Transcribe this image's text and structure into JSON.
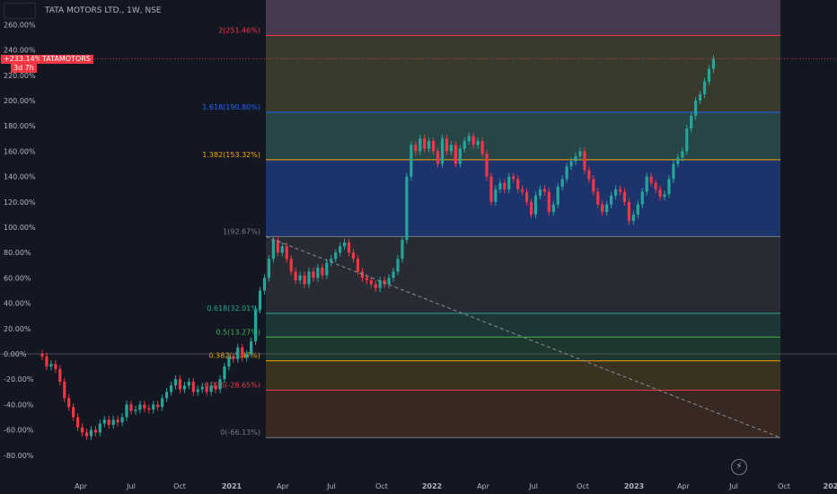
{
  "header": {
    "title": "TATA MOTORS LTD., 1W, NSE"
  },
  "price_label": {
    "value": "+233.14%",
    "countdown": "3d 7h",
    "symbol": "TATAMOTORS"
  },
  "colors": {
    "background": "#131722",
    "up": "#26a69a",
    "down": "#f23645",
    "axis_text": "#b2b5be"
  },
  "icons": [
    "symbol-search-box",
    "lightning-icon"
  ],
  "chart_data": {
    "type": "candlestick",
    "title": "TATA MOTORS LTD., 1W, NSE",
    "ylabel": "",
    "y_unit": "%",
    "yticks": [
      "260.00%",
      "240.00%",
      "220.00%",
      "200.00%",
      "180.00%",
      "160.00%",
      "140.00%",
      "120.00%",
      "100.00%",
      "80.00%",
      "60.00%",
      "40.00%",
      "20.00%",
      "0.00%",
      "-20.00%",
      "-40.00%",
      "-60.00%",
      "-80.00%"
    ],
    "ylim": [
      -84,
      274
    ],
    "xticks": [
      "Apr",
      "Jul",
      "Oct",
      "2021",
      "Apr",
      "Jul",
      "Oct",
      "2022",
      "Apr",
      "Jul",
      "Oct",
      "2023",
      "Apr",
      "Jul",
      "Oct",
      "202"
    ],
    "x_start": "2020-01-06",
    "candles": [
      [
        0,
        -2
      ],
      [
        -2,
        -10
      ],
      [
        -10,
        -8
      ],
      [
        -8,
        -12
      ],
      [
        -12,
        -22
      ],
      [
        -22,
        -35
      ],
      [
        -35,
        -42
      ],
      [
        -42,
        -50
      ],
      [
        -50,
        -58
      ],
      [
        -58,
        -62
      ],
      [
        -62,
        -65
      ],
      [
        -65,
        -60
      ],
      [
        -60,
        -62
      ],
      [
        -62,
        -55
      ],
      [
        -55,
        -52
      ],
      [
        -52,
        -56
      ],
      [
        -56,
        -52
      ],
      [
        -52,
        -54
      ],
      [
        -54,
        -50
      ],
      [
        -50,
        -40
      ],
      [
        -40,
        -45
      ],
      [
        -45,
        -44
      ],
      [
        -44,
        -40
      ],
      [
        -40,
        -43
      ],
      [
        -43,
        -44
      ],
      [
        -44,
        -40
      ],
      [
        -40,
        -42
      ],
      [
        -42,
        -35
      ],
      [
        -35,
        -30
      ],
      [
        -30,
        -25
      ],
      [
        -25,
        -20
      ],
      [
        -20,
        -28
      ],
      [
        -28,
        -25
      ],
      [
        -25,
        -22
      ],
      [
        -22,
        -30
      ],
      [
        -30,
        -28
      ],
      [
        -28,
        -26
      ],
      [
        -26,
        -30
      ],
      [
        -30,
        -25
      ],
      [
        -25,
        -28
      ],
      [
        -28,
        -20
      ],
      [
        -20,
        -10
      ],
      [
        -10,
        -2
      ],
      [
        -2,
        -4
      ],
      [
        -4,
        5
      ],
      [
        5,
        -3
      ],
      [
        -3,
        0
      ],
      [
        0,
        10
      ],
      [
        10,
        35
      ],
      [
        35,
        50
      ],
      [
        50,
        60
      ],
      [
        60,
        75
      ],
      [
        75,
        90
      ],
      [
        90,
        80
      ],
      [
        80,
        85
      ],
      [
        85,
        75
      ],
      [
        75,
        65
      ],
      [
        65,
        58
      ],
      [
        58,
        62
      ],
      [
        62,
        55
      ],
      [
        55,
        65
      ],
      [
        65,
        60
      ],
      [
        60,
        68
      ],
      [
        68,
        62
      ],
      [
        62,
        72
      ],
      [
        72,
        75
      ],
      [
        75,
        80
      ],
      [
        80,
        85
      ],
      [
        85,
        88
      ],
      [
        88,
        80
      ],
      [
        80,
        75
      ],
      [
        75,
        65
      ],
      [
        65,
        60
      ],
      [
        60,
        58
      ],
      [
        58,
        55
      ],
      [
        55,
        52
      ],
      [
        52,
        58
      ],
      [
        58,
        55
      ],
      [
        55,
        60
      ],
      [
        60,
        65
      ],
      [
        65,
        75
      ],
      [
        75,
        90
      ],
      [
        90,
        140
      ],
      [
        140,
        165
      ],
      [
        165,
        160
      ],
      [
        160,
        170
      ],
      [
        170,
        162
      ],
      [
        162,
        168
      ],
      [
        168,
        160
      ],
      [
        160,
        150
      ],
      [
        150,
        170
      ],
      [
        170,
        160
      ],
      [
        160,
        165
      ],
      [
        165,
        150
      ],
      [
        150,
        162
      ],
      [
        162,
        168
      ],
      [
        168,
        172
      ],
      [
        172,
        165
      ],
      [
        165,
        168
      ],
      [
        168,
        158
      ],
      [
        158,
        140
      ],
      [
        140,
        120
      ],
      [
        120,
        130
      ],
      [
        130,
        135
      ],
      [
        135,
        130
      ],
      [
        130,
        140
      ],
      [
        140,
        138
      ],
      [
        138,
        130
      ],
      [
        130,
        128
      ],
      [
        128,
        120
      ],
      [
        120,
        110
      ],
      [
        110,
        125
      ],
      [
        125,
        130
      ],
      [
        130,
        128
      ],
      [
        128,
        112
      ],
      [
        112,
        118
      ],
      [
        118,
        132
      ],
      [
        132,
        138
      ],
      [
        138,
        148
      ],
      [
        148,
        152
      ],
      [
        152,
        156
      ],
      [
        156,
        160
      ],
      [
        160,
        145
      ],
      [
        145,
        138
      ],
      [
        138,
        128
      ],
      [
        128,
        118
      ],
      [
        118,
        112
      ],
      [
        112,
        118
      ],
      [
        118,
        125
      ],
      [
        125,
        130
      ],
      [
        130,
        128
      ],
      [
        128,
        120
      ],
      [
        120,
        105
      ],
      [
        105,
        110
      ],
      [
        110,
        118
      ],
      [
        118,
        128
      ],
      [
        128,
        140
      ],
      [
        140,
        135
      ],
      [
        135,
        130
      ],
      [
        130,
        124
      ],
      [
        124,
        126
      ],
      [
        126,
        138
      ],
      [
        138,
        150
      ],
      [
        150,
        155
      ],
      [
        155,
        160
      ],
      [
        160,
        178
      ],
      [
        178,
        188
      ],
      [
        188,
        200
      ],
      [
        200,
        205
      ],
      [
        205,
        215
      ],
      [
        215,
        225
      ],
      [
        225,
        233
      ]
    ],
    "fibonacci": [
      {
        "level": "2",
        "value": 251.46,
        "label": "2(251.46%)",
        "color": "#f23645"
      },
      {
        "level": "1.618",
        "value": 190.8,
        "label": "1.618(190.80%)",
        "color": "#2962ff"
      },
      {
        "level": "1.382",
        "value": 153.32,
        "label": "1.382(153.32%)",
        "color": "#f7a600"
      },
      {
        "level": "1",
        "value": 92.67,
        "label": "1(92.67%)",
        "color": "#787b86"
      },
      {
        "level": "0.618",
        "value": 32.01,
        "label": "0.618(32.01%)",
        "color": "#26a69a"
      },
      {
        "level": "0.5",
        "value": 13.27,
        "label": "0.5(13.27%)",
        "color": "#4caf50"
      },
      {
        "level": "0.382",
        "value": -5.47,
        "label": "0.382(-5.47%)",
        "color": "#f7a600"
      },
      {
        "level": "0.236",
        "value": -28.65,
        "label": "0.236(-28.65%)",
        "color": "#f23645"
      },
      {
        "level": "0",
        "value": -66.13,
        "label": "0(-66.13%)",
        "color": "#787b86"
      }
    ],
    "last_value": 233.14
  }
}
